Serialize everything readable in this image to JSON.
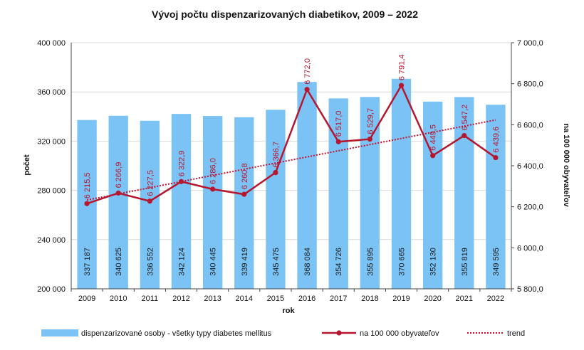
{
  "chart_data": {
    "type": "bar",
    "title": "Vývoj počtu dispenzarizovaných diabetikov, 2009 – 2022",
    "xlabel": "rok",
    "ylabel": "počet",
    "y2label": "na 100 000 obyvateľov",
    "categories": [
      "2009",
      "2010",
      "2011",
      "2012",
      "2013",
      "2014",
      "2015",
      "2016",
      "2017",
      "2018",
      "2019",
      "2020",
      "2021",
      "2022"
    ],
    "ylim": [
      200000,
      400000
    ],
    "y2lim": [
      5800,
      7000
    ],
    "yticks": [
      "200 000",
      "240 000",
      "280 000",
      "320 000",
      "360 000",
      "400 000"
    ],
    "y2ticks": [
      "5 800,0",
      "6 000,0",
      "6 200,0",
      "6 400,0",
      "6 600,0",
      "6 800,0",
      "7 000,0"
    ],
    "grid": true,
    "legend_position": "bottom",
    "colors": {
      "bars": "#7cc3f5",
      "line": "#b5172f",
      "trend": "#c8102e"
    },
    "series": [
      {
        "name": "dispenzarizované osoby - všetky typy diabetes mellitus",
        "type": "bar",
        "axis": "left",
        "values": [
          337187,
          340625,
          336552,
          342124,
          340445,
          339419,
          345475,
          368084,
          354726,
          355895,
          370665,
          352130,
          355819,
          349595
        ],
        "labels": [
          "337 187",
          "340 625",
          "336 552",
          "342 124",
          "340 445",
          "339 419",
          "345 475",
          "368 084",
          "354 726",
          "355 895",
          "370 665",
          "352 130",
          "355 819",
          "349 595"
        ]
      },
      {
        "name": "na 100 000 obyvateľov",
        "type": "line",
        "axis": "right",
        "values": [
          6215.5,
          6266.9,
          6227.5,
          6322.9,
          6286.0,
          6260.8,
          6366.7,
          6772.0,
          6517.0,
          6529.7,
          6791.4,
          6449.5,
          6547.2,
          6439.6
        ],
        "labels": [
          "6 215,5",
          "6 266,9",
          "6 227,5",
          "6 322,9",
          "6 286,0",
          "6 260,8",
          "6 366,7",
          "6 772,0",
          "6 517,0",
          "6 529,7",
          "6 791,4",
          "6 449,5",
          "6 547,2",
          "6 439,6"
        ]
      },
      {
        "name": "trend",
        "type": "trendline",
        "axis": "right"
      }
    ]
  }
}
